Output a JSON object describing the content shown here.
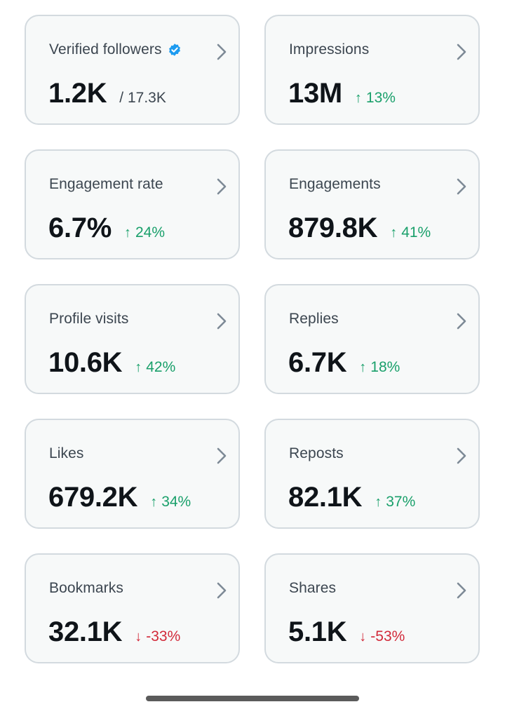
{
  "colors": {
    "up": "#1aa06b",
    "down": "#d22a3a",
    "verified": "#1d9bf0"
  },
  "cards": [
    {
      "label": "Verified followers",
      "value": "1.2K",
      "sub": "/ 17.3K",
      "verified_icon": "verified-badge-icon"
    },
    {
      "label": "Impressions",
      "value": "13M",
      "delta": "13%",
      "direction": "up"
    },
    {
      "label": "Engagement rate",
      "value": "6.7%",
      "delta": "24%",
      "direction": "up"
    },
    {
      "label": "Engagements",
      "value": "879.8K",
      "delta": "41%",
      "direction": "up"
    },
    {
      "label": "Profile visits",
      "value": "10.6K",
      "delta": "42%",
      "direction": "up"
    },
    {
      "label": "Replies",
      "value": "6.7K",
      "delta": "18%",
      "direction": "up"
    },
    {
      "label": "Likes",
      "value": "679.2K",
      "delta": "34%",
      "direction": "up"
    },
    {
      "label": "Reposts",
      "value": "82.1K",
      "delta": "37%",
      "direction": "up"
    },
    {
      "label": "Bookmarks",
      "value": "32.1K",
      "delta": "-33%",
      "direction": "down"
    },
    {
      "label": "Shares",
      "value": "5.1K",
      "delta": "-53%",
      "direction": "down"
    }
  ]
}
